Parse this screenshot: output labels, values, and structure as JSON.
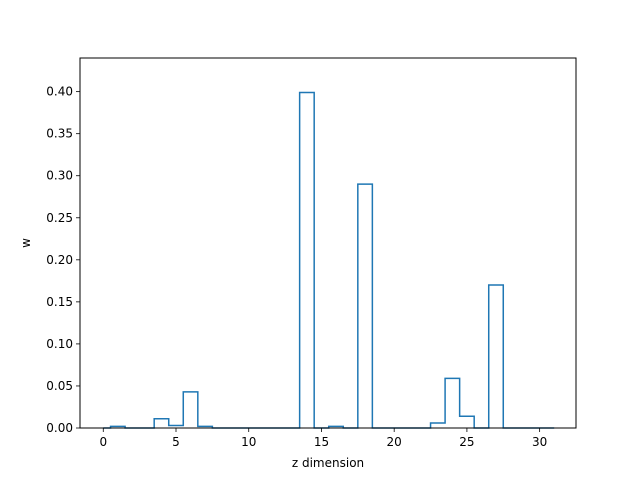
{
  "chart_data": {
    "type": "step",
    "title": "",
    "xlabel": "z dimension",
    "ylabel": "w",
    "xlim": [
      -1.6,
      32.5
    ],
    "ylim": [
      0,
      0.44
    ],
    "grid": false,
    "line_color": "#1f77b4",
    "x": [
      0,
      1,
      2,
      3,
      4,
      5,
      6,
      7,
      8,
      9,
      10,
      11,
      12,
      13,
      14,
      15,
      16,
      17,
      18,
      19,
      20,
      21,
      22,
      23,
      24,
      25,
      26,
      27,
      28,
      29,
      30,
      31
    ],
    "values": [
      0.0,
      0.002,
      0.0,
      0.0,
      0.011,
      0.003,
      0.043,
      0.002,
      0.0,
      0.0,
      0.0,
      0.0,
      0.0,
      0.0,
      0.399,
      0.0,
      0.002,
      0.0,
      0.29,
      0.0,
      0.0,
      0.0,
      0.0,
      0.006,
      0.059,
      0.014,
      0.0,
      0.17,
      0.0,
      0.0,
      0.0,
      0.0
    ],
    "xticks": [
      0,
      5,
      10,
      15,
      20,
      25,
      30
    ],
    "xtick_labels": [
      "0",
      "5",
      "10",
      "15",
      "20",
      "25",
      "30"
    ],
    "yticks": [
      0.0,
      0.05,
      0.1,
      0.15,
      0.2,
      0.25,
      0.3,
      0.35,
      0.4
    ],
    "ytick_labels": [
      "0.00",
      "0.05",
      "0.10",
      "0.15",
      "0.20",
      "0.25",
      "0.30",
      "0.35",
      "0.40"
    ]
  }
}
